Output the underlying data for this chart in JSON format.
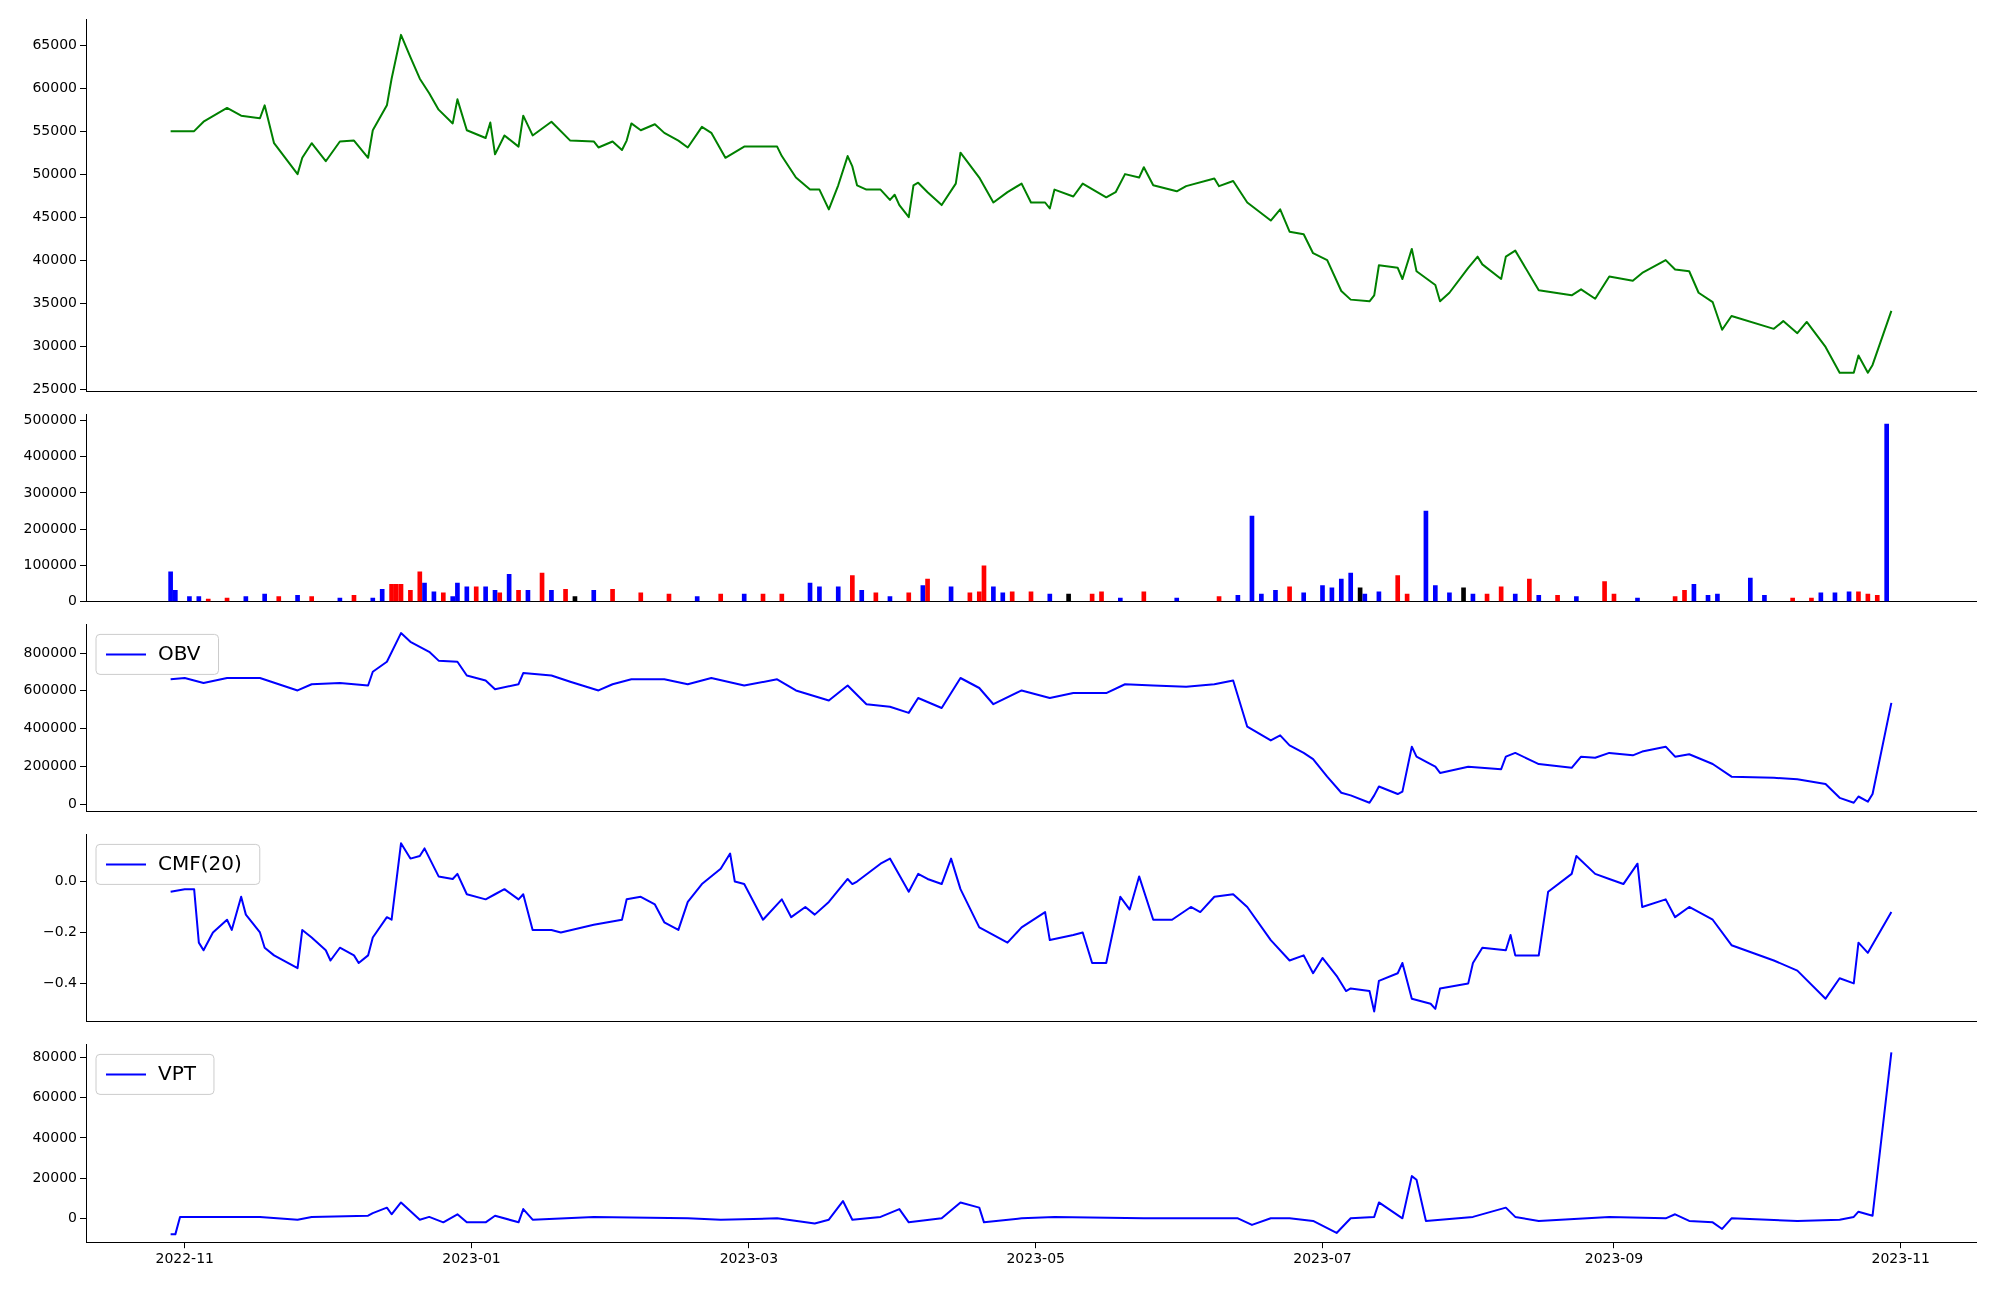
{
  "chart_data": [
    {
      "type": "line",
      "color": "#008000",
      "xlim": [
        "2022-10-11",
        "2023-11-17"
      ],
      "ylim": [
        24700,
        68000
      ],
      "yticks": [
        25000,
        30000,
        35000,
        40000,
        45000,
        50000,
        55000,
        60000,
        65000
      ],
      "tick_labels": "y",
      "x": [
        "2022-10-29",
        "2022-11-03",
        "2022-11-05",
        "2022-11-10",
        "2022-11-13",
        "2022-11-17",
        "2022-11-18",
        "2022-11-20",
        "2022-11-25",
        "2022-11-26",
        "2022-11-28",
        "2022-12-01",
        "2022-12-04",
        "2022-12-07",
        "2022-12-10",
        "2022-12-11",
        "2022-12-14",
        "2022-12-15",
        "2022-12-17",
        "2022-12-19",
        "2022-12-21",
        "2022-12-23",
        "2022-12-25",
        "2022-12-28",
        "2022-12-29",
        "2022-12-31",
        "2023-01-04",
        "2023-01-05",
        "2023-01-06",
        "2023-01-08",
        "2023-01-11",
        "2023-01-12",
        "2023-01-14",
        "2023-01-18",
        "2023-01-22",
        "2023-01-27",
        "2023-01-28",
        "2023-01-31",
        "2023-02-02",
        "2023-02-03",
        "2023-02-04",
        "2023-02-06",
        "2023-02-09",
        "2023-02-11",
        "2023-02-14",
        "2023-02-16",
        "2023-02-19",
        "2023-02-21",
        "2023-02-24",
        "2023-02-28",
        "2023-03-07",
        "2023-03-08",
        "2023-03-11",
        "2023-03-14",
        "2023-03-16",
        "2023-03-18",
        "2023-03-20",
        "2023-03-22",
        "2023-03-23",
        "2023-03-24",
        "2023-03-26",
        "2023-03-29",
        "2023-03-31",
        "2023-04-01",
        "2023-04-02",
        "2023-04-04",
        "2023-04-05",
        "2023-04-06",
        "2023-04-08",
        "2023-04-11",
        "2023-04-14",
        "2023-04-15",
        "2023-04-19",
        "2023-04-22",
        "2023-04-25",
        "2023-04-28",
        "2023-04-30",
        "2023-05-03",
        "2023-05-04",
        "2023-05-05",
        "2023-05-09",
        "2023-05-11",
        "2023-05-16",
        "2023-05-18",
        "2023-05-20",
        "2023-05-23",
        "2023-05-24",
        "2023-05-26",
        "2023-05-31",
        "2023-06-02",
        "2023-06-08",
        "2023-06-09",
        "2023-06-12",
        "2023-06-15",
        "2023-06-20",
        "2023-06-22",
        "2023-06-24",
        "2023-06-27",
        "2023-06-29",
        "2023-07-02",
        "2023-07-05",
        "2023-07-07",
        "2023-07-11",
        "2023-07-12",
        "2023-07-13",
        "2023-07-17",
        "2023-07-18",
        "2023-07-20",
        "2023-07-21",
        "2023-07-25",
        "2023-07-26",
        "2023-07-28",
        "2023-08-01",
        "2023-08-03",
        "2023-08-04",
        "2023-08-08",
        "2023-08-09",
        "2023-08-11",
        "2023-08-16",
        "2023-08-23",
        "2023-08-25",
        "2023-08-28",
        "2023-08-31",
        "2023-09-05",
        "2023-09-07",
        "2023-09-12",
        "2023-09-14",
        "2023-09-17",
        "2023-09-19",
        "2023-09-22",
        "2023-09-24",
        "2023-09-26",
        "2023-10-05",
        "2023-10-07",
        "2023-10-10",
        "2023-10-12",
        "2023-10-16",
        "2023-10-19",
        "2023-10-22",
        "2023-10-23",
        "2023-10-25",
        "2023-10-26",
        "2023-10-30"
      ],
      "values": [
        55000,
        55000,
        56100,
        57700,
        56800,
        56500,
        58000,
        53600,
        50000,
        51900,
        53600,
        51500,
        53800,
        53900,
        51900,
        55100,
        58000,
        61100,
        66200,
        63600,
        61100,
        59400,
        57500,
        55900,
        58700,
        55100,
        54200,
        56000,
        52300,
        54500,
        53200,
        56800,
        54500,
        56100,
        53900,
        53800,
        53100,
        53800,
        52800,
        53900,
        55900,
        55100,
        55800,
        54800,
        53900,
        53100,
        55500,
        54800,
        51900,
        53200,
        53200,
        52100,
        49600,
        48200,
        48200,
        45900,
        48700,
        52100,
        50900,
        48700,
        48200,
        48200,
        47000,
        47600,
        46400,
        45000,
        48700,
        49000,
        47900,
        46400,
        48900,
        52500,
        49600,
        46700,
        47900,
        48900,
        46700,
        46700,
        46000,
        48200,
        47400,
        48900,
        47300,
        47900,
        50000,
        49600,
        50800,
        48700,
        48000,
        48600,
        49500,
        48600,
        49200,
        46700,
        44600,
        45900,
        43300,
        43000,
        40800,
        40000,
        36400,
        35400,
        35200,
        35900,
        39400,
        39100,
        37800,
        41300,
        38700,
        37100,
        35200,
        36200,
        39100,
        40400,
        39500,
        37800,
        40400,
        41100,
        36500,
        35900,
        36600,
        35500,
        38100,
        37600,
        38500,
        40000,
        38900,
        38700,
        36200,
        35100,
        31900,
        33500,
        32000,
        32900,
        31500,
        32800,
        29900,
        26900,
        26900,
        28900,
        26900,
        27800,
        34100
      ]
    },
    {
      "type": "bar",
      "xlim": [
        "2022-10-11",
        "2023-11-17"
      ],
      "ylim": [
        0,
        517000
      ],
      "yticks": [
        0,
        100000,
        200000,
        300000,
        400000,
        500000
      ],
      "tick_labels": "y",
      "x": [
        "2022-10-29",
        "2022-10-30",
        "2022-11-02",
        "2022-11-04",
        "2022-11-06",
        "2022-11-10",
        "2022-11-14",
        "2022-11-18",
        "2022-11-21",
        "2022-11-25",
        "2022-11-28",
        "2022-12-04",
        "2022-12-07",
        "2022-12-11",
        "2022-12-13",
        "2022-12-15",
        "2022-12-16",
        "2022-12-17",
        "2022-12-19",
        "2022-12-21",
        "2022-12-22",
        "2022-12-24",
        "2022-12-26",
        "2022-12-28",
        "2022-12-29",
        "2022-12-31",
        "2023-01-02",
        "2023-01-04",
        "2023-01-06",
        "2023-01-07",
        "2023-01-09",
        "2023-01-11",
        "2023-01-13",
        "2023-01-16",
        "2023-01-18",
        "2023-01-21",
        "2023-01-23",
        "2023-01-27",
        "2023-01-31",
        "2023-02-06",
        "2023-02-12",
        "2023-02-18",
        "2023-02-23",
        "2023-02-28",
        "2023-03-04",
        "2023-03-08",
        "2023-03-14",
        "2023-03-16",
        "2023-03-20",
        "2023-03-23",
        "2023-03-25",
        "2023-03-28",
        "2023-03-31",
        "2023-04-04",
        "2023-04-07",
        "2023-04-08",
        "2023-04-13",
        "2023-04-17",
        "2023-04-19",
        "2023-04-20",
        "2023-04-22",
        "2023-04-24",
        "2023-04-26",
        "2023-04-30",
        "2023-05-04",
        "2023-05-08",
        "2023-05-13",
        "2023-05-15",
        "2023-05-19",
        "2023-05-24",
        "2023-05-31",
        "2023-06-09",
        "2023-06-13",
        "2023-06-16",
        "2023-06-18",
        "2023-06-21",
        "2023-06-24",
        "2023-06-27",
        "2023-07-01",
        "2023-07-03",
        "2023-07-05",
        "2023-07-07",
        "2023-07-09",
        "2023-07-10",
        "2023-07-13",
        "2023-07-17",
        "2023-07-19",
        "2023-07-23",
        "2023-07-25",
        "2023-07-28",
        "2023-07-31",
        "2023-08-02",
        "2023-08-05",
        "2023-08-08",
        "2023-08-11",
        "2023-08-14",
        "2023-08-16",
        "2023-08-20",
        "2023-08-24",
        "2023-08-30",
        "2023-09-01",
        "2023-09-06",
        "2023-09-14",
        "2023-09-16",
        "2023-09-18",
        "2023-09-21",
        "2023-09-23",
        "2023-09-30",
        "2023-10-03",
        "2023-10-09",
        "2023-10-13",
        "2023-10-15",
        "2023-10-18",
        "2023-10-21",
        "2023-10-23",
        "2023-10-25",
        "2023-10-27",
        "2023-10-29"
      ],
      "values": [
        82000,
        31000,
        14000,
        14000,
        7000,
        10000,
        14000,
        21000,
        14000,
        17000,
        14000,
        10000,
        17000,
        10000,
        34000,
        48000,
        48000,
        48000,
        31000,
        82000,
        51000,
        27000,
        24000,
        14000,
        51000,
        41000,
        41000,
        41000,
        31000,
        24000,
        75000,
        31000,
        31000,
        79000,
        31000,
        34000,
        14000,
        31000,
        34000,
        24000,
        21000,
        14000,
        21000,
        21000,
        21000,
        21000,
        51000,
        41000,
        41000,
        72000,
        31000,
        24000,
        14000,
        24000,
        44000,
        62000,
        41000,
        24000,
        27000,
        99000,
        41000,
        24000,
        27000,
        27000,
        21000,
        21000,
        21000,
        27000,
        10000,
        27000,
        10000,
        14000,
        17000,
        236000,
        21000,
        31000,
        41000,
        24000,
        44000,
        38000,
        62000,
        79000,
        38000,
        21000,
        27000,
        72000,
        21000,
        250000,
        44000,
        24000,
        38000,
        21000,
        21000,
        41000,
        21000,
        62000,
        17000,
        17000,
        14000,
        55000,
        21000,
        10000,
        14000,
        31000,
        48000,
        17000,
        21000,
        65000,
        17000,
        10000,
        10000,
        24000,
        24000,
        27000,
        27000,
        21000,
        17000,
        490000
      ],
      "colors": [
        "#0000ff",
        "#0000ff",
        "#0000ff",
        "#0000ff",
        "#ff0000",
        "#ff0000",
        "#0000ff",
        "#0000ff",
        "#ff0000",
        "#0000ff",
        "#ff0000",
        "#0000ff",
        "#ff0000",
        "#0000ff",
        "#0000ff",
        "#ff0000",
        "#ff0000",
        "#ff0000",
        "#ff0000",
        "#ff0000",
        "#0000ff",
        "#0000ff",
        "#ff0000",
        "#0000ff",
        "#0000ff",
        "#0000ff",
        "#ff0000",
        "#0000ff",
        "#0000ff",
        "#ff0000",
        "#0000ff",
        "#ff0000",
        "#0000ff",
        "#ff0000",
        "#0000ff",
        "#ff0000",
        "#000000",
        "#0000ff",
        "#ff0000",
        "#ff0000",
        "#ff0000",
        "#0000ff",
        "#ff0000",
        "#0000ff",
        "#ff0000",
        "#ff0000",
        "#0000ff",
        "#0000ff",
        "#0000ff",
        "#ff0000",
        "#0000ff",
        "#ff0000",
        "#0000ff",
        "#ff0000",
        "#0000ff",
        "#ff0000",
        "#0000ff",
        "#ff0000",
        "#ff0000",
        "#ff0000",
        "#0000ff",
        "#0000ff",
        "#ff0000",
        "#ff0000",
        "#0000ff",
        "#000000",
        "#ff0000",
        "#ff0000",
        "#0000ff",
        "#ff0000",
        "#0000ff",
        "#ff0000",
        "#0000ff",
        "#0000ff",
        "#0000ff",
        "#0000ff",
        "#ff0000",
        "#0000ff",
        "#0000ff",
        "#0000ff",
        "#0000ff",
        "#0000ff",
        "#000000",
        "#0000ff",
        "#0000ff",
        "#ff0000",
        "#ff0000",
        "#0000ff",
        "#0000ff",
        "#0000ff",
        "#000000",
        "#0000ff",
        "#ff0000",
        "#ff0000",
        "#0000ff",
        "#ff0000",
        "#0000ff",
        "#ff0000",
        "#0000ff",
        "#ff0000",
        "#ff0000",
        "#0000ff",
        "#ff0000",
        "#ff0000",
        "#0000ff",
        "#0000ff",
        "#0000ff",
        "#0000ff",
        "#0000ff",
        "#ff0000",
        "#ff0000",
        "#0000ff",
        "#0000ff",
        "#0000ff",
        "#ff0000",
        "#ff0000",
        "#ff0000",
        "#0000ff"
      ]
    },
    {
      "type": "line",
      "legend": "top left",
      "xlim": [
        "2022-10-11",
        "2023-11-17"
      ],
      "ylim": [
        -40000,
        952000
      ],
      "yticks": [
        0,
        200000,
        400000,
        600000,
        800000
      ],
      "tick_labels": "y",
      "series": [
        {
          "name": "OBV",
          "color": "#0000ff",
          "x": [
            "2022-10-29",
            "2022-11-01",
            "2022-11-05",
            "2022-11-10",
            "2022-11-17",
            "2022-11-25",
            "2022-11-28",
            "2022-12-04",
            "2022-12-10",
            "2022-12-11",
            "2022-12-14",
            "2022-12-17",
            "2022-12-19",
            "2022-12-23",
            "2022-12-25",
            "2022-12-29",
            "2022-12-31",
            "2023-01-04",
            "2023-01-06",
            "2023-01-11",
            "2023-01-12",
            "2023-01-18",
            "2023-01-22",
            "2023-01-28",
            "2023-01-31",
            "2023-02-04",
            "2023-02-11",
            "2023-02-16",
            "2023-02-21",
            "2023-02-28",
            "2023-03-07",
            "2023-03-11",
            "2023-03-18",
            "2023-03-22",
            "2023-03-26",
            "2023-03-31",
            "2023-04-04",
            "2023-04-06",
            "2023-04-11",
            "2023-04-15",
            "2023-04-19",
            "2023-04-22",
            "2023-04-28",
            "2023-05-04",
            "2023-05-09",
            "2023-05-16",
            "2023-05-20",
            "2023-05-26",
            "2023-06-02",
            "2023-06-08",
            "2023-06-12",
            "2023-06-15",
            "2023-06-20",
            "2023-06-22",
            "2023-06-24",
            "2023-06-27",
            "2023-06-29",
            "2023-07-02",
            "2023-07-05",
            "2023-07-07",
            "2023-07-11",
            "2023-07-12",
            "2023-07-13",
            "2023-07-17",
            "2023-07-18",
            "2023-07-20",
            "2023-07-21",
            "2023-07-25",
            "2023-07-26",
            "2023-08-01",
            "2023-08-08",
            "2023-08-09",
            "2023-08-11",
            "2023-08-16",
            "2023-08-23",
            "2023-08-25",
            "2023-08-28",
            "2023-08-31",
            "2023-09-05",
            "2023-09-07",
            "2023-09-12",
            "2023-09-14",
            "2023-09-17",
            "2023-09-22",
            "2023-09-26",
            "2023-10-05",
            "2023-10-10",
            "2023-10-16",
            "2023-10-19",
            "2023-10-22",
            "2023-10-23",
            "2023-10-25",
            "2023-10-26",
            "2023-10-30"
          ],
          "values": [
            661000,
            668000,
            641000,
            668000,
            668000,
            602000,
            635000,
            641000,
            628000,
            701000,
            754000,
            906000,
            860000,
            807000,
            760000,
            754000,
            681000,
            655000,
            608000,
            635000,
            694000,
            681000,
            648000,
            602000,
            635000,
            661000,
            661000,
            635000,
            668000,
            628000,
            661000,
            602000,
            549000,
            628000,
            529000,
            516000,
            483000,
            562000,
            509000,
            668000,
            615000,
            529000,
            602000,
            562000,
            588000,
            588000,
            635000,
            628000,
            622000,
            635000,
            655000,
            410000,
            337000,
            364000,
            311000,
            271000,
            238000,
            145000,
            60000,
            46000,
            7000,
            46000,
            93000,
            53000,
            66000,
            304000,
            251000,
            198000,
            165000,
            198000,
            185000,
            251000,
            271000,
            212000,
            192000,
            251000,
            245000,
            271000,
            258000,
            278000,
            304000,
            251000,
            264000,
            212000,
            145000,
            139000,
            132000,
            106000,
            33000,
            7000,
            40000,
            13000,
            53000,
            536000
          ]
        }
      ]
    },
    {
      "type": "line",
      "legend": "top left",
      "xlim": [
        "2022-10-11",
        "2023-11-17"
      ],
      "ylim": [
        -0.55,
        0.185
      ],
      "yticks": [
        {
          "value": -0.4,
          "label": "−0.4"
        },
        {
          "value": -0.2,
          "label": "−0.2"
        },
        {
          "value": 0,
          "label": "0.0"
        }
      ],
      "tick_labels": "y",
      "series": [
        {
          "name": "CMF(20)",
          "color": "#0000ff",
          "x": [
            "2022-10-29",
            "2022-11-01",
            "2022-11-03",
            "2022-11-04",
            "2022-11-05",
            "2022-11-07",
            "2022-11-10",
            "2022-11-11",
            "2022-11-13",
            "2022-11-14",
            "2022-11-17",
            "2022-11-18",
            "2022-11-20",
            "2022-11-25",
            "2022-11-26",
            "2022-11-28",
            "2022-12-01",
            "2022-12-02",
            "2022-12-04",
            "2022-12-07",
            "2022-12-08",
            "2022-12-10",
            "2022-12-11",
            "2022-12-14",
            "2022-12-15",
            "2022-12-17",
            "2022-12-19",
            "2022-12-21",
            "2022-12-22",
            "2022-12-25",
            "2022-12-28",
            "2022-12-29",
            "2022-12-31",
            "2023-01-04",
            "2023-01-06",
            "2023-01-08",
            "2023-01-11",
            "2023-01-12",
            "2023-01-14",
            "2023-01-18",
            "2023-01-20",
            "2023-01-27",
            "2023-02-02",
            "2023-02-03",
            "2023-02-06",
            "2023-02-09",
            "2023-02-11",
            "2023-02-14",
            "2023-02-16",
            "2023-02-19",
            "2023-02-23",
            "2023-02-25",
            "2023-02-26",
            "2023-02-28",
            "2023-03-04",
            "2023-03-08",
            "2023-03-10",
            "2023-03-13",
            "2023-03-15",
            "2023-03-18",
            "2023-03-22",
            "2023-03-23",
            "2023-03-24",
            "2023-03-29",
            "2023-03-31",
            "2023-04-04",
            "2023-04-06",
            "2023-04-08",
            "2023-04-11",
            "2023-04-13",
            "2023-04-15",
            "2023-04-19",
            "2023-04-20",
            "2023-04-25",
            "2023-04-28",
            "2023-05-03",
            "2023-05-04",
            "2023-05-09",
            "2023-05-11",
            "2023-05-13",
            "2023-05-16",
            "2023-05-19",
            "2023-05-21",
            "2023-05-23",
            "2023-05-26",
            "2023-05-30",
            "2023-06-03",
            "2023-06-05",
            "2023-06-08",
            "2023-06-12",
            "2023-06-15",
            "2023-06-20",
            "2023-06-24",
            "2023-06-27",
            "2023-06-29",
            "2023-07-01",
            "2023-07-04",
            "2023-07-06",
            "2023-07-07",
            "2023-07-11",
            "2023-07-12",
            "2023-07-13",
            "2023-07-17",
            "2023-07-18",
            "2023-07-20",
            "2023-07-24",
            "2023-07-25",
            "2023-07-26",
            "2023-08-01",
            "2023-08-02",
            "2023-08-04",
            "2023-08-09",
            "2023-08-10",
            "2023-08-11",
            "2023-08-16",
            "2023-08-18",
            "2023-08-23",
            "2023-08-24",
            "2023-08-28",
            "2023-08-31",
            "2023-09-03",
            "2023-09-06",
            "2023-09-07",
            "2023-09-12",
            "2023-09-14",
            "2023-09-17",
            "2023-09-22",
            "2023-09-26",
            "2023-10-05",
            "2023-10-10",
            "2023-10-16",
            "2023-10-19",
            "2023-10-22",
            "2023-10-23",
            "2023-10-25",
            "2023-10-30"
          ],
          "values": [
            -0.04,
            -0.03,
            -0.03,
            -0.24,
            -0.27,
            -0.2,
            -0.15,
            -0.19,
            -0.06,
            -0.13,
            -0.2,
            -0.26,
            -0.29,
            -0.34,
            -0.19,
            -0.22,
            -0.27,
            -0.31,
            -0.26,
            -0.29,
            -0.32,
            -0.29,
            -0.22,
            -0.14,
            -0.15,
            0.15,
            0.09,
            0.1,
            0.13,
            0.02,
            0.01,
            0.03,
            -0.05,
            -0.07,
            -0.05,
            -0.03,
            -0.07,
            -0.05,
            -0.19,
            -0.19,
            -0.2,
            -0.17,
            -0.15,
            -0.07,
            -0.06,
            -0.09,
            -0.16,
            -0.19,
            -0.08,
            -0.01,
            0.05,
            0.11,
            0,
            -0.01,
            -0.15,
            -0.07,
            -0.14,
            -0.1,
            -0.13,
            -0.08,
            0.01,
            -0.01,
            0,
            0.07,
            0.09,
            -0.04,
            0.03,
            0.01,
            -0.01,
            0.09,
            -0.03,
            -0.18,
            -0.19,
            -0.24,
            -0.18,
            -0.12,
            -0.23,
            -0.21,
            -0.2,
            -0.32,
            -0.32,
            -0.06,
            -0.11,
            0.02,
            -0.15,
            -0.15,
            -0.1,
            -0.12,
            -0.06,
            -0.05,
            -0.1,
            -0.23,
            -0.31,
            -0.29,
            -0.36,
            -0.3,
            -0.37,
            -0.43,
            -0.42,
            -0.43,
            -0.51,
            -0.39,
            -0.36,
            -0.32,
            -0.46,
            -0.48,
            -0.5,
            -0.42,
            -0.4,
            -0.32,
            -0.26,
            -0.27,
            -0.21,
            -0.29,
            -0.29,
            -0.04,
            0.03,
            0.1,
            0.03,
            0.01,
            -0.01,
            0.07,
            -0.1,
            -0.07,
            -0.14,
            -0.1,
            -0.15,
            -0.25,
            -0.31,
            -0.35,
            -0.46,
            -0.38,
            -0.4,
            -0.24,
            -0.28,
            -0.12
          ]
        }
      ]
    },
    {
      "type": "line",
      "legend": "top left",
      "xlim": [
        "2022-10-11",
        "2023-11-17"
      ],
      "ylim": [
        -11900,
        86600
      ],
      "yticks": [
        0,
        20000,
        40000,
        60000,
        80000
      ],
      "xticks": [
        {
          "value": "2022-11-01",
          "label": "2022-11"
        },
        {
          "value": "2023-01-01",
          "label": "2023-01"
        },
        {
          "value": "2023-03-01",
          "label": "2023-03"
        },
        {
          "value": "2023-05-01",
          "label": "2023-05"
        },
        {
          "value": "2023-07-01",
          "label": "2023-07"
        },
        {
          "value": "2023-09-01",
          "label": "2023-09"
        },
        {
          "value": "2023-11-01",
          "label": "2023-11"
        }
      ],
      "series": [
        {
          "name": "VPT",
          "color": "#0000ff",
          "x": [
            "2022-10-29",
            "2022-10-30",
            "2022-10-31",
            "2022-11-17",
            "2022-11-25",
            "2022-11-28",
            "2022-12-10",
            "2022-12-11",
            "2022-12-14",
            "2022-12-15",
            "2022-12-17",
            "2022-12-21",
            "2022-12-23",
            "2022-12-26",
            "2022-12-29",
            "2022-12-31",
            "2023-01-04",
            "2023-01-06",
            "2023-01-11",
            "2023-01-12",
            "2023-01-14",
            "2023-01-27",
            "2023-02-16",
            "2023-02-23",
            "2023-03-07",
            "2023-03-15",
            "2023-03-18",
            "2023-03-21",
            "2023-03-23",
            "2023-03-29",
            "2023-04-02",
            "2023-04-04",
            "2023-04-11",
            "2023-04-15",
            "2023-04-19",
            "2023-04-20",
            "2023-04-28",
            "2023-05-05",
            "2023-05-24",
            "2023-06-04",
            "2023-06-13",
            "2023-06-16",
            "2023-06-20",
            "2023-06-24",
            "2023-06-29",
            "2023-07-04",
            "2023-07-07",
            "2023-07-12",
            "2023-07-13",
            "2023-07-18",
            "2023-07-20",
            "2023-07-21",
            "2023-07-23",
            "2023-08-02",
            "2023-08-09",
            "2023-08-11",
            "2023-08-16",
            "2023-08-31",
            "2023-09-12",
            "2023-09-14",
            "2023-09-17",
            "2023-09-22",
            "2023-09-24",
            "2023-09-26",
            "2023-10-10",
            "2023-10-19",
            "2023-10-22",
            "2023-10-23",
            "2023-10-26",
            "2023-10-30"
          ],
          "values": [
            -8000,
            -8000,
            700,
            700,
            -700,
            700,
            1300,
            2600,
            5300,
            2000,
            7900,
            -700,
            700,
            -2000,
            2000,
            -2000,
            -2000,
            1300,
            -2000,
            4600,
            -700,
            700,
            0,
            -700,
            0,
            -2600,
            -700,
            8600,
            -700,
            700,
            4600,
            -2000,
            0,
            7900,
            5300,
            -2000,
            0,
            700,
            0,
            0,
            0,
            -3300,
            0,
            0,
            -1300,
            -7300,
            0,
            700,
            7900,
            0,
            21000,
            19200,
            -1300,
            700,
            5300,
            700,
            -1300,
            700,
            0,
            2000,
            -1300,
            -2000,
            -5300,
            0,
            -1300,
            -700,
            700,
            3300,
            1300,
            82600
          ]
        }
      ]
    }
  ]
}
